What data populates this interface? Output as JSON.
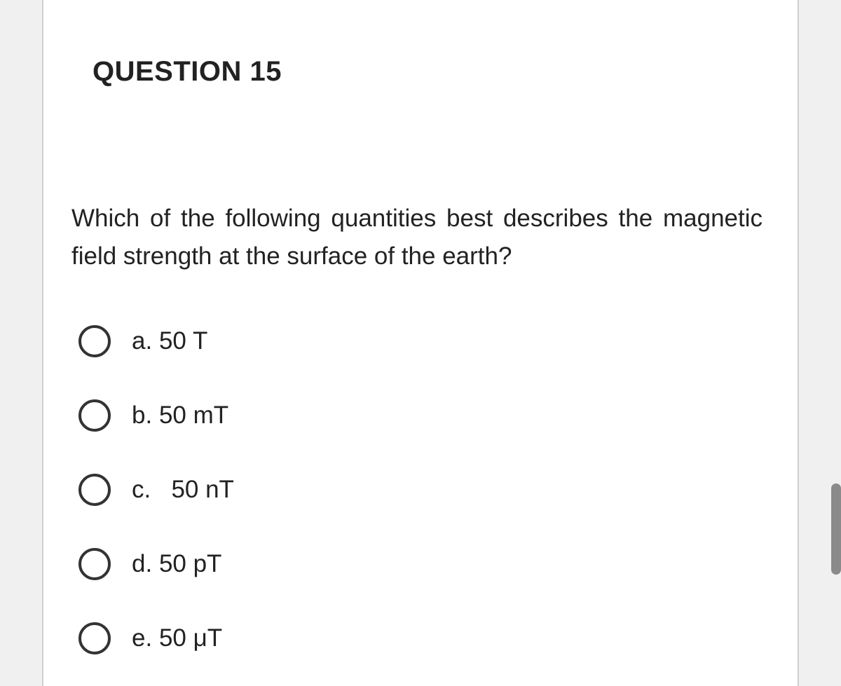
{
  "question": {
    "title": "QUESTION 15",
    "prompt": "Which of the following quantities best describes the magnetic field strength at the surface of the earth?",
    "options": [
      {
        "letter": "a.",
        "text": "50 T"
      },
      {
        "letter": "b.",
        "text": "50 mT"
      },
      {
        "letter": "c.",
        "text": "50 nT"
      },
      {
        "letter": "d.",
        "text": "50 pT"
      },
      {
        "letter": "e.",
        "text": "50 μT"
      }
    ]
  },
  "colors": {
    "card_bg": "#ffffff",
    "page_bg": "#f0f0f0",
    "border": "#cfcfcf",
    "text": "#222222",
    "radio_border": "#333333",
    "scrollbar": "#8a8a8a"
  }
}
